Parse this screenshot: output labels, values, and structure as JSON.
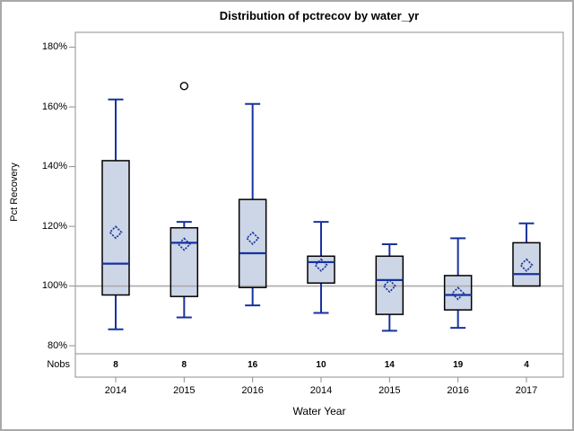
{
  "chart_data": {
    "type": "boxplot",
    "title": "Distribution of pctrecov by water_yr",
    "xlabel": "Water Year",
    "ylabel": "Pct Recovery",
    "nobs_row_label": "Nobs",
    "y_tick_values": [
      180,
      160,
      140,
      120,
      100,
      80
    ],
    "y_tick_labels": [
      "180%",
      "160%",
      "140%",
      "120%",
      "100%",
      "80%"
    ],
    "ylim": [
      77.3,
      185.0
    ],
    "reference_line": 100,
    "grid": "off",
    "legend": "none",
    "categories": [
      "2014",
      "2015",
      "2016",
      "2014",
      "2015",
      "2016",
      "2017"
    ],
    "nobs": [
      8,
      8,
      16,
      10,
      14,
      19,
      4
    ],
    "boxes": [
      {
        "category": "2014",
        "nobs": 8,
        "whisker_low": 85.5,
        "q1": 97,
        "median": 107.5,
        "mean": 118,
        "q3": 142,
        "whisker_high": 162.5,
        "outliers": []
      },
      {
        "category": "2015",
        "nobs": 8,
        "whisker_low": 89.5,
        "q1": 96.5,
        "median": 114.5,
        "mean": 114,
        "q3": 119.5,
        "whisker_high": 121.5,
        "outliers": [
          167
        ]
      },
      {
        "category": "2016",
        "nobs": 16,
        "whisker_low": 93.5,
        "q1": 99.5,
        "median": 111,
        "mean": 116,
        "q3": 129,
        "whisker_high": 161,
        "outliers": []
      },
      {
        "category": "2014",
        "nobs": 10,
        "whisker_low": 91,
        "q1": 101,
        "median": 108,
        "mean": 107,
        "q3": 110,
        "whisker_high": 121.5,
        "outliers": []
      },
      {
        "category": "2015",
        "nobs": 14,
        "whisker_low": 85,
        "q1": 90.5,
        "median": 102,
        "mean": 100,
        "q3": 110,
        "whisker_high": 114,
        "outliers": []
      },
      {
        "category": "2016",
        "nobs": 19,
        "whisker_low": 86,
        "q1": 92,
        "median": 97,
        "mean": 97.5,
        "q3": 103.5,
        "whisker_high": 116,
        "outliers": []
      },
      {
        "category": "2017",
        "nobs": 4,
        "whisker_low": 100,
        "q1": 100,
        "median": 104,
        "mean": 107,
        "q3": 114.5,
        "whisker_high": 121,
        "outliers": []
      }
    ],
    "colors": {
      "box_fill": "#ccd6e7",
      "box_border": "#000000",
      "line": "#16339e",
      "reference_line": "#ababab",
      "frame": "#8f8f8f",
      "outlier_stroke": "#000000",
      "text": "#000000",
      "background": "#ffffff",
      "outer_border": "#a9a9a9"
    }
  }
}
